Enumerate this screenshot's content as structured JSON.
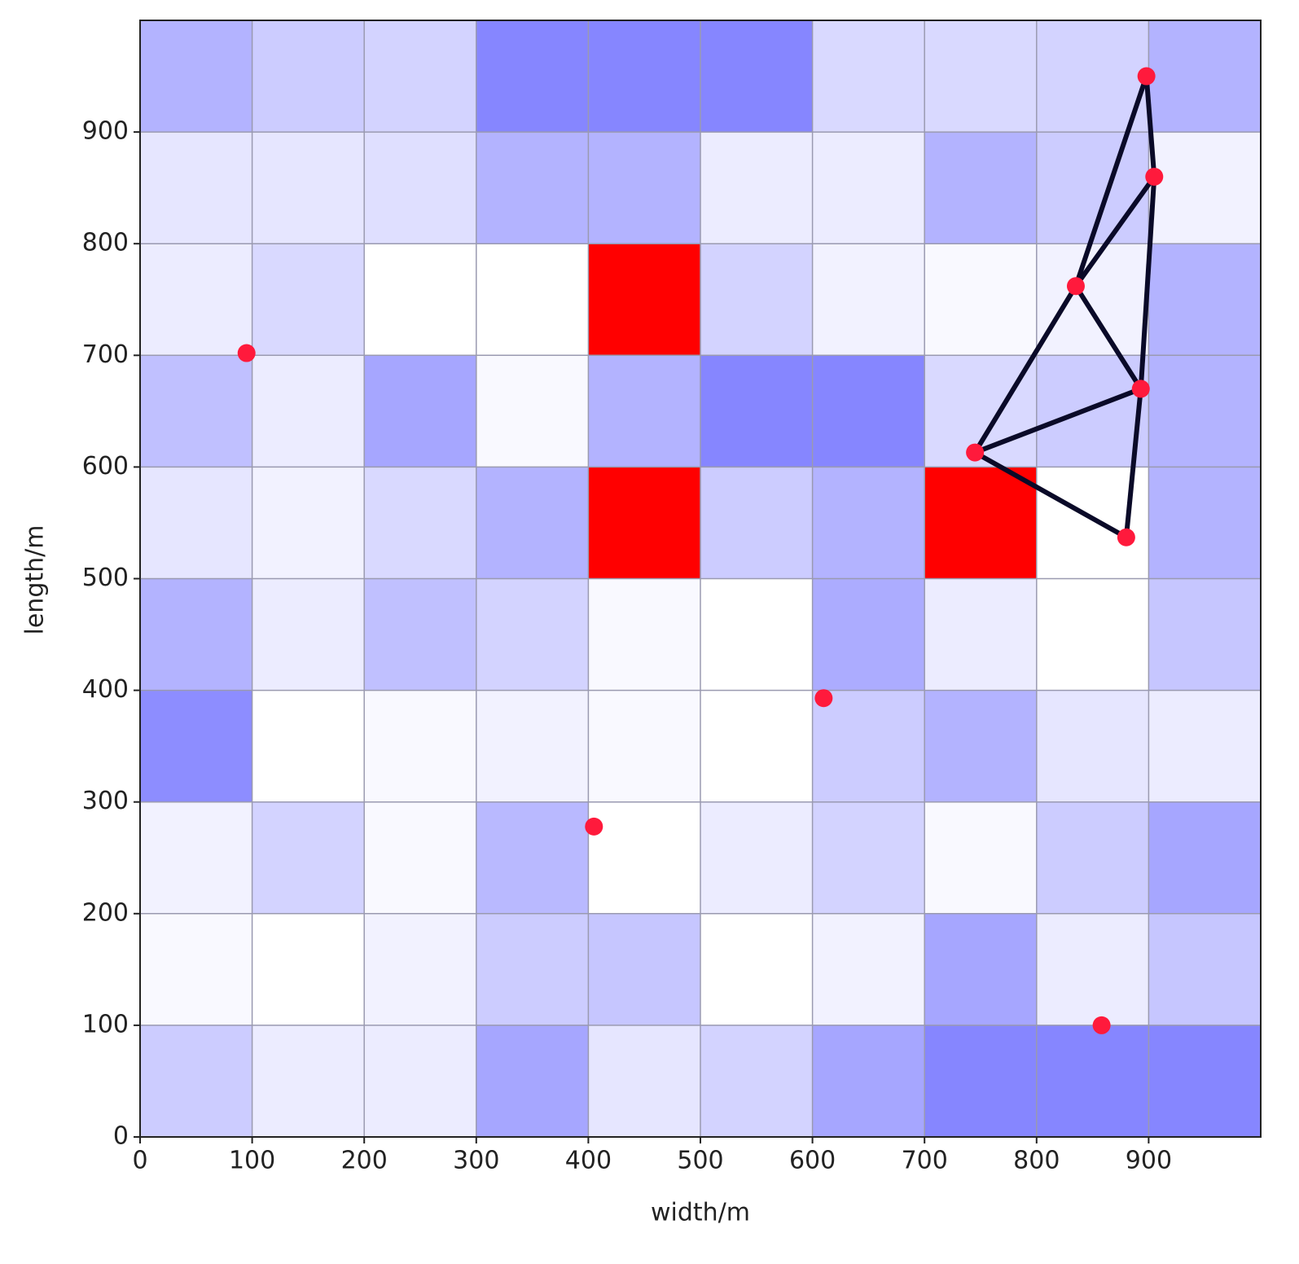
{
  "chart_data": {
    "type": "heatmap",
    "xlabel": "width/m",
    "ylabel": "length/m",
    "xlim": [
      0,
      1000
    ],
    "ylim": [
      0,
      1000
    ],
    "xticks": [
      0,
      100,
      200,
      300,
      400,
      500,
      600,
      700,
      800,
      900
    ],
    "yticks": [
      0,
      100,
      200,
      300,
      400,
      500,
      600,
      700,
      800,
      900
    ],
    "grid": true,
    "cell_size": 100,
    "colormap": [
      "#ffffff",
      "#8080ff"
    ],
    "z": [
      [
        0.4,
        0.15,
        0.15,
        0.7,
        0.2,
        0.35,
        0.7,
        0.95,
        0.95,
        0.95
      ],
      [
        0.05,
        0.0,
        0.1,
        0.4,
        0.45,
        0.0,
        0.1,
        0.7,
        0.15,
        0.45
      ],
      [
        0.1,
        0.35,
        0.05,
        0.55,
        0.0,
        0.15,
        0.35,
        0.05,
        0.4,
        0.7
      ],
      [
        0.9,
        0.0,
        0.05,
        0.1,
        0.05,
        0.0,
        0.4,
        0.6,
        0.2,
        0.15
      ],
      [
        0.6,
        0.15,
        0.5,
        0.35,
        0.05,
        0.0,
        0.65,
        0.15,
        0.0,
        0.45
      ],
      [
        0.2,
        0.1,
        0.3,
        0.6,
        null,
        0.4,
        0.6,
        null,
        0.0,
        0.6
      ],
      [
        0.5,
        0.15,
        0.7,
        0.05,
        0.6,
        0.95,
        0.95,
        0.3,
        0.4,
        0.6
      ],
      [
        0.15,
        0.3,
        0.0,
        0.0,
        null,
        0.35,
        0.1,
        0.05,
        0.1,
        0.6
      ],
      [
        0.2,
        0.2,
        0.25,
        0.6,
        0.6,
        0.15,
        0.15,
        0.6,
        0.4,
        0.1
      ],
      [
        0.6,
        0.4,
        0.35,
        0.95,
        0.95,
        0.95,
        0.3,
        0.3,
        0.35,
        0.6
      ]
    ],
    "obstacle_color": "#ff0000",
    "obstacles": [
      {
        "x": 400,
        "y": 700
      },
      {
        "x": 400,
        "y": 500
      },
      {
        "x": 700,
        "y": 500
      }
    ],
    "points": {
      "color": "#ff1a3c",
      "x": [
        95,
        405,
        610,
        858,
        898,
        905,
        835,
        893,
        745,
        880
      ],
      "y": [
        702,
        278,
        393,
        100,
        950,
        860,
        762,
        670,
        613,
        537
      ]
    },
    "edge_color": "#0a0a28",
    "edges": [
      [
        4,
        6
      ],
      [
        4,
        5
      ],
      [
        5,
        6
      ],
      [
        5,
        7
      ],
      [
        6,
        7
      ],
      [
        6,
        8
      ],
      [
        8,
        7
      ],
      [
        7,
        9
      ],
      [
        8,
        9
      ]
    ]
  }
}
